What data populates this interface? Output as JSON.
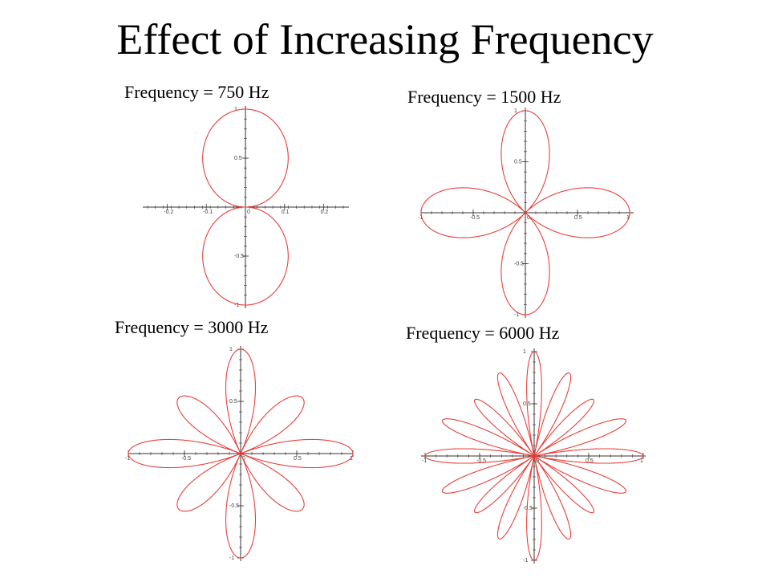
{
  "slide": {
    "title": "Effect of Increasing Frequency"
  },
  "colors": {
    "curve": "#e8403c",
    "axis": "#333333"
  },
  "chart_data": [
    {
      "type": "polar-line",
      "title": "Frequency = 750 Hz",
      "petals": 1,
      "xlim": [
        -0.25,
        0.25
      ],
      "ylim": [
        -1,
        1
      ],
      "xticks": [
        "-0.2",
        "-0.1",
        "0",
        "0.1",
        "0.2"
      ],
      "xtick_values": [
        -0.2,
        -0.1,
        0,
        0.1,
        0.2
      ],
      "yticks": [
        "1",
        "0.5",
        "-0.5",
        "-1"
      ],
      "ytick_values": [
        1,
        0.5,
        -0.5,
        -1
      ],
      "grid": false
    },
    {
      "type": "polar-line",
      "title": "Frequency = 1500 Hz",
      "petals": 2,
      "xlim": [
        -1,
        1
      ],
      "ylim": [
        -1,
        1
      ],
      "xticks": [
        "-1",
        "-0.5",
        "0",
        "0.5",
        "1"
      ],
      "xtick_values": [
        -1,
        -0.5,
        0,
        0.5,
        1
      ],
      "yticks": [
        "1",
        "0.5",
        "-0.5",
        "-1"
      ],
      "ytick_values": [
        1,
        0.5,
        -0.5,
        -1
      ],
      "grid": false
    },
    {
      "type": "polar-line",
      "title": "Frequency = 3000 Hz",
      "petals": 4,
      "xlim": [
        -1,
        1
      ],
      "ylim": [
        -1,
        1
      ],
      "xticks": [
        "-1",
        "-0.5",
        "0",
        "0.5",
        "1"
      ],
      "xtick_values": [
        -1,
        -0.5,
        0,
        0.5,
        1
      ],
      "yticks": [
        "1",
        "0.5",
        "-0.5",
        "-1"
      ],
      "ytick_values": [
        1,
        0.5,
        -0.5,
        -1
      ],
      "grid": false
    },
    {
      "type": "polar-line",
      "title": "Frequency = 6000 Hz",
      "petals": 8,
      "xlim": [
        -1,
        1
      ],
      "ylim": [
        -1,
        1
      ],
      "xticks": [
        "-1",
        "-0.5",
        "0",
        "0.5",
        "1"
      ],
      "xtick_values": [
        -1,
        -0.5,
        0,
        0.5,
        1
      ],
      "yticks": [
        "1",
        "0.5",
        "-0.5",
        "-1"
      ],
      "ytick_values": [
        1,
        0.5,
        -0.5,
        -1
      ],
      "grid": false
    }
  ]
}
